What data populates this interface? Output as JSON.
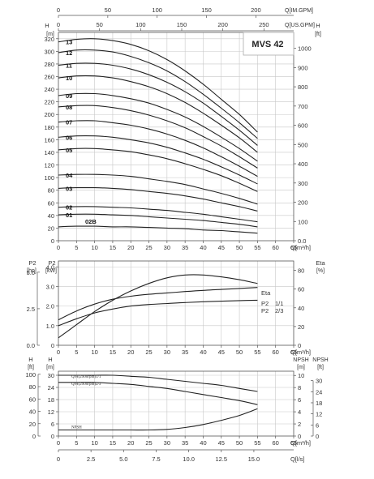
{
  "chart_data": [
    {
      "type": "line",
      "title": "MVS 42",
      "x": [
        0,
        5,
        10,
        15,
        20,
        25,
        30,
        35,
        40,
        45,
        50,
        55
      ],
      "xlabel": "Q[m³/h]",
      "xlim": [
        0,
        65
      ],
      "x_ticks": [
        "0",
        "5",
        "10",
        "15",
        "20",
        "25",
        "30",
        "35",
        "40",
        "45",
        "50",
        "55",
        "60",
        "65"
      ],
      "top_axis_1": {
        "label": "Q[IM.GPM]",
        "ticks": [
          "0",
          "50",
          "100",
          "150",
          "200"
        ]
      },
      "top_axis_2": {
        "label": "Q[US.GPM]",
        "ticks": [
          "0",
          "50",
          "100",
          "150",
          "200",
          "250"
        ]
      },
      "ylabel_left": "H",
      "ylabel_left_unit": "[m]",
      "ylim": [
        0,
        330
      ],
      "y_ticks": [
        "0",
        "20",
        "40",
        "60",
        "80",
        "100",
        "120",
        "140",
        "160",
        "180",
        "200",
        "220",
        "240",
        "260",
        "280",
        "300",
        "320"
      ],
      "ylabel_right": "H",
      "ylabel_right_unit": "[ft]",
      "y_right_ticks": [
        "0.0",
        "100",
        "200",
        "300",
        "400",
        "500",
        "600",
        "700",
        "800",
        "900",
        "1000"
      ],
      "series": [
        {
          "name": "13",
          "values": [
            315,
            319,
            320,
            317,
            311,
            301,
            287,
            269,
            248,
            224,
            200,
            172
          ]
        },
        {
          "name": "12",
          "values": [
            298,
            302,
            302,
            299,
            292,
            282,
            269,
            252,
            232,
            210,
            187,
            162
          ]
        },
        {
          "name": "11",
          "values": [
            278,
            281,
            281,
            278,
            272,
            263,
            251,
            236,
            218,
            197,
            175,
            151
          ]
        },
        {
          "name": "10",
          "values": [
            258,
            261,
            261,
            258,
            252,
            244,
            233,
            219,
            202,
            183,
            163,
            140
          ]
        },
        {
          "name": "09",
          "values": [
            230,
            233,
            233,
            230,
            225,
            218,
            208,
            196,
            181,
            164,
            146,
            126
          ]
        },
        {
          "name": "08",
          "values": [
            212,
            214,
            214,
            211,
            206,
            199,
            190,
            179,
            165,
            150,
            133,
            115
          ]
        },
        {
          "name": "07",
          "values": [
            188,
            190,
            190,
            187,
            183,
            177,
            169,
            159,
            147,
            133,
            118,
            102
          ]
        },
        {
          "name": "06",
          "values": [
            164,
            166,
            166,
            164,
            160,
            155,
            148,
            139,
            129,
            117,
            104,
            90
          ]
        },
        {
          "name": "05",
          "values": [
            144,
            146,
            146,
            144,
            141,
            136,
            130,
            122,
            113,
            103,
            91,
            78
          ]
        },
        {
          "name": "04",
          "values": [
            104,
            105,
            105,
            104,
            102,
            98,
            94,
            89,
            82,
            75,
            67,
            58
          ]
        },
        {
          "name": "03",
          "values": [
            83,
            84,
            84,
            83,
            81,
            78,
            75,
            71,
            66,
            60,
            54,
            47
          ]
        },
        {
          "name": "02",
          "values": [
            53,
            54,
            54,
            53,
            52,
            50,
            48,
            45,
            42,
            38,
            34,
            30
          ]
        },
        {
          "name": "01",
          "values": [
            41,
            42,
            42,
            41,
            40,
            38,
            36,
            34,
            32,
            29,
            26,
            22
          ]
        },
        {
          "name": "02B",
          "values": [
            22,
            23,
            23,
            22,
            22,
            21,
            20,
            19,
            17,
            16,
            14,
            12
          ]
        }
      ]
    },
    {
      "type": "line",
      "x": [
        0,
        5,
        10,
        15,
        20,
        25,
        30,
        35,
        40,
        45,
        50,
        55
      ],
      "xlabel": "Q[m³/h]",
      "xlim": [
        0,
        65
      ],
      "x_ticks": [
        "0",
        "5",
        "10",
        "15",
        "20",
        "25",
        "30",
        "35",
        "40",
        "45",
        "50",
        "55",
        "60",
        "65"
      ],
      "ylabel_left": "P2",
      "ylabel_left_unit": "[kW]",
      "ylabel_left_outer": "P2",
      "ylabel_left_outer_unit": "[hp]",
      "ylim": [
        0,
        4.3
      ],
      "y_ticks": [
        "0",
        "1.0",
        "2.0",
        "3.0",
        "4.0"
      ],
      "y_outer_ticks": [
        "0.0",
        "2.5",
        "5.0"
      ],
      "ylabel_right": "Eta",
      "ylabel_right_unit": "[%]",
      "y_right_ticks": [
        "0",
        "20",
        "40",
        "60",
        "80"
      ],
      "series": [
        {
          "name": "Eta",
          "axis": "right",
          "values": [
            8,
            22,
            36,
            48,
            58,
            66,
            72,
            75,
            75,
            73,
            70,
            66
          ]
        },
        {
          "name": "P2 1/1",
          "values": [
            1.3,
            1.75,
            2.1,
            2.35,
            2.5,
            2.6,
            2.67,
            2.74,
            2.8,
            2.85,
            2.9,
            2.95
          ]
        },
        {
          "name": "P2 2/3",
          "values": [
            1.0,
            1.35,
            1.65,
            1.85,
            2.0,
            2.08,
            2.13,
            2.18,
            2.22,
            2.25,
            2.28,
            2.3
          ]
        }
      ],
      "labels": {
        "eta": "Eta",
        "p2a_name": "P2",
        "p2a_frac": "1/1",
        "p2b_name": "P2",
        "p2b_frac": "2/3"
      }
    },
    {
      "type": "line",
      "x": [
        0,
        5,
        10,
        15,
        20,
        25,
        30,
        35,
        40,
        45,
        50,
        55
      ],
      "xlabel": "Q[m³/h]",
      "xlim": [
        0,
        65
      ],
      "x_ticks": [
        "0",
        "5",
        "10",
        "15",
        "20",
        "25",
        "30",
        "35",
        "40",
        "45",
        "50",
        "55",
        "60",
        "65"
      ],
      "ylabel_left": "H",
      "ylabel_left_unit": "[m]",
      "ylabel_left_outer": "H",
      "ylabel_left_outer_unit": "[ft]",
      "ylim": [
        0,
        32
      ],
      "y_ticks": [
        "0",
        "6",
        "12",
        "18",
        "24",
        "30"
      ],
      "y_outer_ticks": [
        "0",
        "20",
        "40",
        "60",
        "80",
        "100"
      ],
      "ylabel_right": "NPSH",
      "ylabel_right_unit": "[m]",
      "y_right_ticks": [
        "0",
        "2",
        "4",
        "6",
        "8",
        "10"
      ],
      "ylabel_right_outer": "NPSH",
      "ylabel_right_outer_unit": "[ft]",
      "y_right_outer_ticks": [
        "0",
        "6",
        "12",
        "18",
        "24",
        "30"
      ],
      "series": [
        {
          "name": "Q/H(2900rpm)1/1",
          "values": [
            30,
            30,
            30,
            30,
            29.5,
            29,
            28,
            27,
            26,
            25,
            23.5,
            22
          ]
        },
        {
          "name": "Q/H(2900rpm)2/3",
          "values": [
            26.5,
            26.5,
            26.5,
            26,
            25.5,
            24.5,
            23.5,
            22,
            20.5,
            19,
            17.5,
            15.5
          ]
        },
        {
          "name": "NPSH",
          "values": [
            1.0,
            1.0,
            1.0,
            1.0,
            1.0,
            1.0,
            1.1,
            1.4,
            1.9,
            2.6,
            3.4,
            4.5
          ]
        }
      ]
    }
  ],
  "bottom_axis": {
    "label": "Q[l/s]",
    "ticks": [
      "0",
      "2.5",
      "5.0",
      "7.5",
      "10.0",
      "12.5",
      "15.0"
    ]
  }
}
